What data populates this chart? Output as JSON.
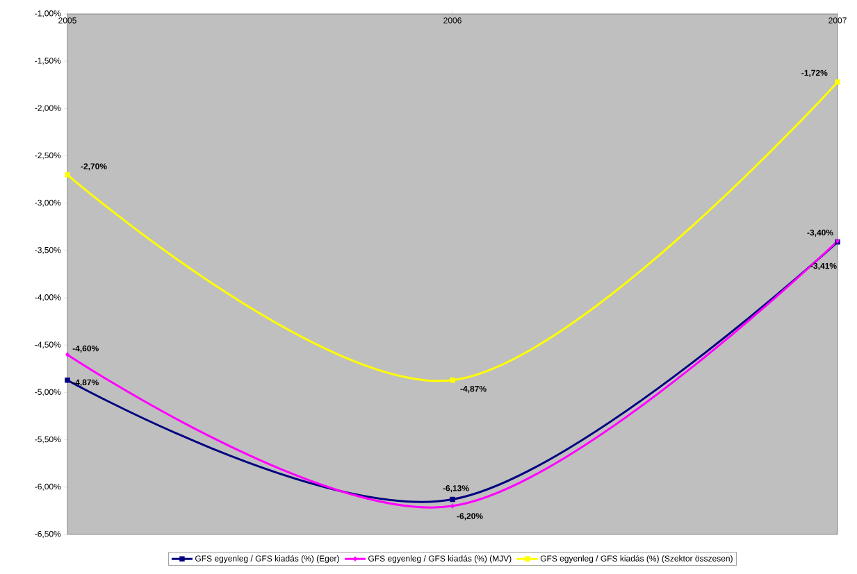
{
  "chart_data": {
    "type": "line",
    "categories": [
      "2005",
      "2006",
      "2007"
    ],
    "ylim": [
      -6.5,
      -1
    ],
    "yticks": [
      {
        "value": -6.5,
        "label": "-6,50%"
      },
      {
        "value": -6,
        "label": "-6,00%"
      },
      {
        "value": -5.5,
        "label": "-5,50%"
      },
      {
        "value": -5,
        "label": "-5,00%"
      },
      {
        "value": -4.5,
        "label": "-4,50%"
      },
      {
        "value": -4,
        "label": "-4,00%"
      },
      {
        "value": -3.5,
        "label": "-3,50%"
      },
      {
        "value": -3,
        "label": "-3,00%"
      },
      {
        "value": -2.5,
        "label": "-2,50%"
      },
      {
        "value": -2,
        "label": "-2,00%"
      },
      {
        "value": -1.5,
        "label": "-1,50%"
      },
      {
        "value": -1,
        "label": "-1,00%"
      }
    ],
    "legend": "bottom",
    "marker": "square",
    "series": [
      {
        "name": "GFS egyenleg / GFS kiadás (%) (Eger)",
        "color": "#000080",
        "values": [
          -4.87,
          -6.13,
          -3.41
        ],
        "value_labels": [
          "-4,87%",
          "-6,13%",
          "-3,41%"
        ]
      },
      {
        "name": "GFS egyenleg / GFS kiadás (%) (MJV)",
        "color": "#ff00ff",
        "marker": "diamond",
        "values": [
          -4.6,
          -6.2,
          -3.4
        ],
        "value_labels": [
          "-4,60%",
          "-6,20%",
          "-3,40%"
        ]
      },
      {
        "name": "GFS egyenleg / GFS kiadás (%) (Szektor összesen)",
        "color": "#ffff00",
        "values": [
          -2.7,
          -4.87,
          -1.72
        ],
        "value_labels": [
          "-2,70%",
          "-4,87%",
          "-1,72%"
        ]
      }
    ]
  }
}
